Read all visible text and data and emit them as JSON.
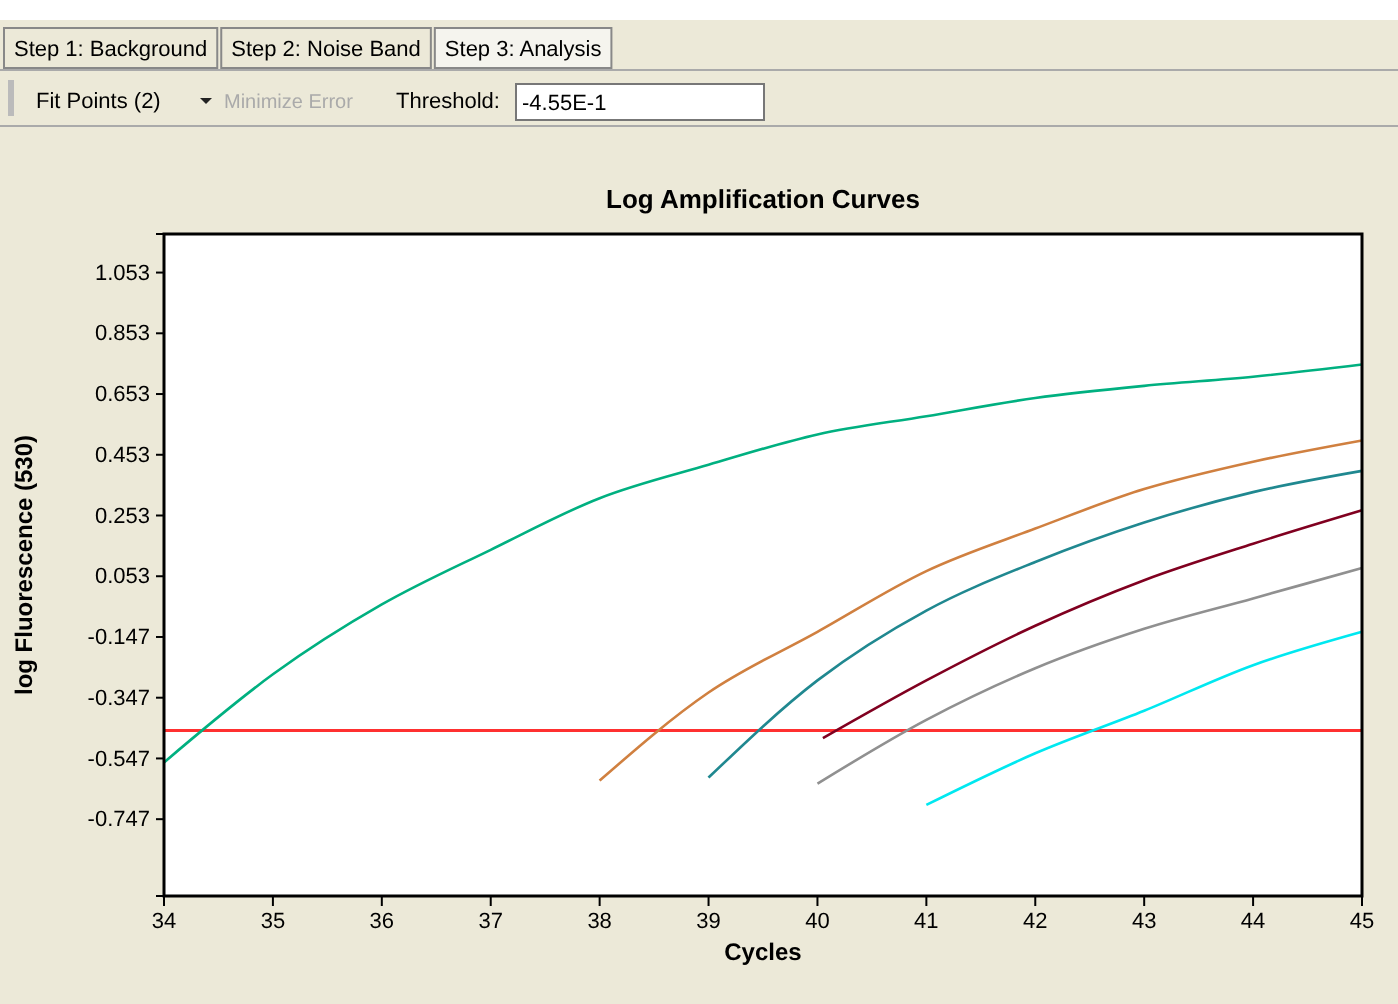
{
  "chart_data": {
    "type": "line",
    "title": "Log Amplification Curves",
    "xlabel": "Cycles",
    "ylabel": "log Fluorescence (530)",
    "annotations": [
      "Step 1: Background",
      "Step 2: Noise Band",
      "Step 3: Analysis",
      "Fit Points (2)",
      "Minimize Error",
      "Threshold:",
      "-4.55E-1"
    ],
    "xlim": [
      34,
      45
    ],
    "xticks": [
      34,
      35,
      36,
      37,
      38,
      39,
      40,
      41,
      42,
      43,
      44,
      45
    ],
    "ylim": [
      -1.0,
      1.18
    ],
    "yticks": [
      -0.747,
      -0.547,
      -0.347,
      -0.147,
      0.053,
      0.253,
      0.453,
      0.653,
      0.853,
      1.053
    ],
    "marker": "none",
    "line_style": "solid",
    "ref_lines": [
      {
        "axis": "y",
        "value": -0.455,
        "label": null,
        "color": "#ff3030"
      }
    ],
    "series": [
      {
        "color": "#00b080",
        "x": [
          34,
          35,
          36,
          37,
          38,
          39,
          40,
          41,
          42,
          43,
          44,
          45
        ],
        "values": [
          -0.56,
          -0.27,
          -0.04,
          0.14,
          0.31,
          0.42,
          0.52,
          0.58,
          0.64,
          0.68,
          0.71,
          0.75
        ]
      },
      {
        "color": "#d08040",
        "x": [
          38,
          39,
          40,
          41,
          42,
          43,
          44,
          45
        ],
        "values": [
          -0.62,
          -0.33,
          -0.13,
          0.07,
          0.21,
          0.34,
          0.43,
          0.5
        ]
      },
      {
        "color": "#208890",
        "x": [
          39,
          40,
          41,
          42,
          43,
          44,
          45
        ],
        "values": [
          -0.61,
          -0.29,
          -0.06,
          0.1,
          0.23,
          0.33,
          0.4
        ]
      },
      {
        "color": "#800020",
        "x": [
          40.05,
          41,
          42,
          43,
          44,
          45
        ],
        "values": [
          -0.48,
          -0.29,
          -0.11,
          0.04,
          0.16,
          0.27
        ]
      },
      {
        "color": "#909090",
        "x": [
          40,
          41,
          42,
          43,
          44,
          45
        ],
        "values": [
          -0.63,
          -0.42,
          -0.25,
          -0.12,
          -0.02,
          0.08
        ]
      },
      {
        "color": "#00e8f0",
        "x": [
          41,
          42,
          43,
          44,
          45
        ],
        "values": [
          -0.7,
          -0.53,
          -0.39,
          -0.24,
          -0.13
        ]
      }
    ]
  }
}
